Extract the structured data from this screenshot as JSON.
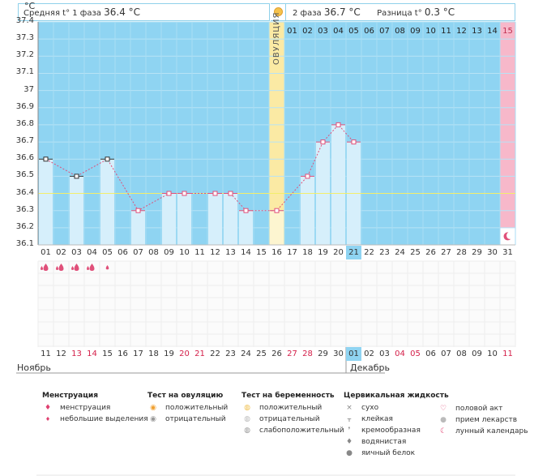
{
  "header": {
    "unit": "°C",
    "phase1_label": "Средняя t° 1 фаза",
    "phase1_value": "36.4 °C",
    "phase2_label": "2 фаза",
    "phase2_value": "36.7 °C",
    "diff_label": "Разница t°",
    "diff_value": "0.3 °C",
    "ovulation_label": "ОВУЛЯЦИЯ"
  },
  "cycle_days_top": [
    "01",
    "02",
    "03",
    "04",
    "05",
    "06",
    "07",
    "08",
    "09",
    "10",
    "11",
    "12",
    "13",
    "14",
    "15"
  ],
  "chart_data": {
    "type": "line",
    "ylim": [
      36.1,
      37.4
    ],
    "yticks": [
      "37.4",
      "37.3",
      "37.2",
      "37.1",
      "37",
      "36.9",
      "36.8",
      "36.7",
      "36.6",
      "36.5",
      "36.4",
      "36.3",
      "36.2",
      "36.1"
    ],
    "cover_line": 36.4,
    "x": [
      "01",
      "02",
      "03",
      "04",
      "05",
      "06",
      "07",
      "08",
      "09",
      "10",
      "11",
      "12",
      "13",
      "14",
      "15",
      "16",
      "17",
      "18",
      "19",
      "20",
      "21",
      "22",
      "23",
      "24",
      "25",
      "26",
      "27",
      "28",
      "29",
      "30",
      "31"
    ],
    "y": [
      36.6,
      null,
      36.5,
      null,
      36.6,
      null,
      36.3,
      null,
      36.4,
      36.4,
      null,
      36.4,
      36.4,
      36.3,
      null,
      36.3,
      null,
      36.5,
      36.7,
      36.8,
      36.7,
      null,
      null,
      null,
      null,
      null,
      null,
      null,
      null,
      null,
      null
    ],
    "ovulation_day": 16,
    "today_day": 21,
    "moon_day": 31
  },
  "menstruation_days": [
    1,
    2,
    3,
    4,
    5
  ],
  "dates": [
    "11",
    "12",
    "13",
    "14",
    "15",
    "16",
    "17",
    "18",
    "19",
    "20",
    "21",
    "22",
    "23",
    "24",
    "25",
    "26",
    "27",
    "28",
    "29",
    "30",
    "01",
    "02",
    "03",
    "04",
    "05",
    "06",
    "07",
    "08",
    "09",
    "10",
    "11"
  ],
  "weekend_dates": [
    2,
    3,
    9,
    10,
    16,
    17,
    23,
    24,
    30
  ],
  "months": {
    "first": "Ноябрь",
    "second": "Декабрь"
  },
  "legend": {
    "menstruation": {
      "title": "Менструация",
      "items": [
        "менструация",
        "небольшие выделения"
      ]
    },
    "ovulation_test": {
      "title": "Тест на овуляцию",
      "items": [
        "положительный",
        "отрицательный"
      ]
    },
    "pregnancy_test": {
      "title": "Тест на беременность",
      "items": [
        "положительный",
        "отрицательный",
        "слабоположительный"
      ]
    },
    "cervical_fluid": {
      "title": "Цервикальная жидкость",
      "items": [
        "сухо",
        "клейкая",
        "кремообразная",
        "водянистая",
        "яичный белок"
      ]
    },
    "other": {
      "items": [
        "половой акт",
        "прием лекарств",
        "лунный календарь"
      ]
    }
  },
  "colors": {
    "sky": "#8fd4f2",
    "bar": "#d6effb",
    "ovulation": "#fbeaa4",
    "pink": "#f7b8ca",
    "line": "#e0507a",
    "weekend": "#d4204a"
  }
}
